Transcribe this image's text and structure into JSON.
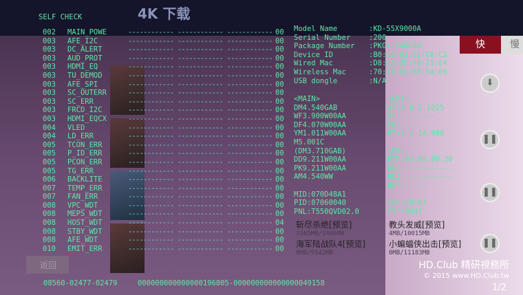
{
  "title": "SELF CHECK",
  "background": {
    "header": "4K 下载",
    "tab_fast": "快",
    "tab_slow": "慢",
    "back_label": "返回",
    "movies": [
      {
        "title": "斩尽杀绝[预览]",
        "size": "3165MB/3406MB"
      },
      {
        "title": "教头发威[预览]",
        "size": "4MB/10015MB"
      },
      {
        "title": "海军陆战队4[预览]",
        "size": "0MB/9542MB"
      },
      {
        "title": "小蝙蝠侠出击[预览]",
        "size": "0MB/11183MB"
      }
    ],
    "buttons": [
      "download-icon",
      "pause-icon",
      "pause-icon",
      "pause-icon"
    ],
    "page": "1/2"
  },
  "errors": [
    {
      "code": "002",
      "name": "MAIN_POWE",
      "value": "00"
    },
    {
      "code": "003",
      "name": "AFE_I2C",
      "value": "00"
    },
    {
      "code": "003",
      "name": "DC_ALERT",
      "value": "00"
    },
    {
      "code": "003",
      "name": "AUD_PROT",
      "value": "00"
    },
    {
      "code": "003",
      "name": "HDMI_EQ",
      "value": "00"
    },
    {
      "code": "003",
      "name": "TU_DEMOD",
      "value": "00"
    },
    {
      "code": "003",
      "name": "AFE_SPI",
      "value": "00"
    },
    {
      "code": "003",
      "name": "SC_OUTERR",
      "value": "00"
    },
    {
      "code": "003",
      "name": "SC_ERR",
      "value": "00"
    },
    {
      "code": "003",
      "name": "FRCD_I2C",
      "value": "00"
    },
    {
      "code": "003",
      "name": "HDMI_EQCX",
      "value": "00"
    },
    {
      "code": "004",
      "name": "VLED",
      "value": "00"
    },
    {
      "code": "004",
      "name": "LD_ERR",
      "value": "00"
    },
    {
      "code": "005",
      "name": "TCON_ERR",
      "value": "00"
    },
    {
      "code": "005",
      "name": "P_ID_ERR",
      "value": "00"
    },
    {
      "code": "005",
      "name": "PCON_ERR",
      "value": "00"
    },
    {
      "code": "005",
      "name": "TG_ERR",
      "value": "00"
    },
    {
      "code": "006",
      "name": "BACKLITE",
      "value": "00"
    },
    {
      "code": "007",
      "name": "TEMP_ERR",
      "value": "00"
    },
    {
      "code": "007",
      "name": "FAN_ERR",
      "value": "00"
    },
    {
      "code": "008",
      "name": "VPC_WDT",
      "value": "00"
    },
    {
      "code": "008",
      "name": "MEPS_WDT",
      "value": "00"
    },
    {
      "code": "008",
      "name": "HOST_WDT",
      "value": "04"
    },
    {
      "code": "008",
      "name": "STBY_WDT",
      "value": "00"
    },
    {
      "code": "008",
      "name": "AFE_WDT",
      "value": "00"
    },
    {
      "code": "010",
      "name": "EMIT_ERR",
      "value": "00"
    }
  ],
  "dashes": "------------ ------------ ------------",
  "info": [
    {
      "label": "Model Name",
      "value": ":KD-55X9000A"
    },
    {
      "label": "Serial Number",
      "value": ":200"
    },
    {
      "label": "Package Number",
      "value": ":PKG4.540GAB"
    },
    {
      "label": "Device ID",
      "value": ":B0:00:02:21:C8:C3"
    },
    {
      "label": "Wired Mac",
      "value": ":D8:D4:3C:4B:21:E4"
    },
    {
      "label": "Wireless Mac",
      "value": ":70:18:8b:60:5d:69"
    },
    {
      "label": "USB dongle",
      "value": ":N/A"
    }
  ],
  "versions": [
    [
      "<MAIN>",
      "<EXT>"
    ],
    [
      "DM4.540GAB",
      "WF:3.0.2.1025"
    ],
    [
      "WF3.900W00AA",
      "WF:--------"
    ],
    [
      "DF4.070W00AA",
      "FD:-.---"
    ],
    [
      "YM1.011W00AA",
      "BT:1.2.14.988"
    ],
    [
      "M5.001C",
      ""
    ],
    [
      "(DM3.710GAB)",
      "<FS>"
    ],
    [
      "DD9.211W00AA",
      "EFR:03.00.00.20"
    ],
    [
      "PK9.211W00AA",
      "DNC:-----------"
    ],
    [
      "AM4.540WW",
      "DNI:-----------"
    ],
    [
      "",
      "DNF:-----"
    ],
    [
      "MID:070D48A1",
      ""
    ],
    [
      "PID:07060040",
      "SCF:20.07"
    ],
    [
      "PNL:T550QVD02.0",
      "SYF:0047"
    ]
  ],
  "footer": {
    "left": "08560-02477-02479",
    "right": "000000000000000196805-000000000000000049158"
  },
  "watermark": {
    "line1": "HD.Club 精研視務所",
    "line2": "© 2015  www.HD.Club.tw"
  },
  "colors": {
    "text": "#62e6a6",
    "accent": "#8a1020"
  }
}
